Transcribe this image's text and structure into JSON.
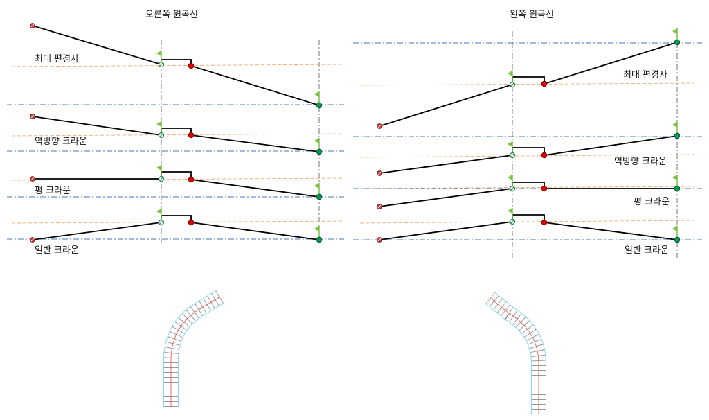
{
  "panels": [
    {
      "title": "오른쪽 원곡선",
      "rows": [
        "최대 편경사",
        "역방향 크라운",
        "평 크라운",
        "일반 크라운"
      ]
    },
    {
      "title": "왼쪽 원곡선",
      "rows": [
        "최대 편경사",
        "역방향 크라운",
        "평 크라운",
        "일반 크라운"
      ]
    }
  ],
  "colors": {
    "profile_line": "#000000",
    "start_node": "#e03030",
    "break_node": "#1a8a4a",
    "red_node": "#e00000",
    "end_node": "#0a9a4a",
    "flag": "#7cc242",
    "axis_dashdot": "#4a7ab8",
    "reference_dashed": "#f4a060",
    "curve_edge": "#8ad8f0",
    "curve_center": "#e05050"
  }
}
